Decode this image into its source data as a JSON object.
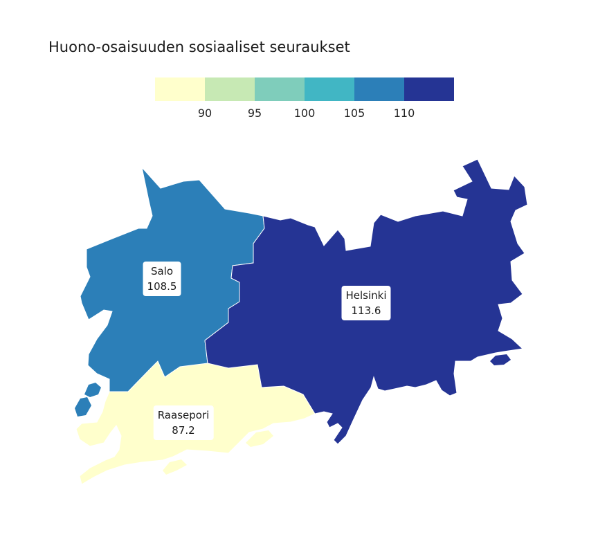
{
  "title": "Huono-osaisuuden sosiaaliset seuraukset",
  "legend": {
    "bins": [
      {
        "color": "#ffffcc"
      },
      {
        "color": "#c7e9b4"
      },
      {
        "color": "#7fcdbb"
      },
      {
        "color": "#41b6c4"
      },
      {
        "color": "#2c7fb8"
      },
      {
        "color": "#253494"
      }
    ],
    "ticks": [
      "90",
      "95",
      "100",
      "105",
      "110"
    ]
  },
  "regions": [
    {
      "name": "Salo",
      "value": "108.5",
      "color": "#2c7fb8"
    },
    {
      "name": "Helsinki",
      "value": "113.6",
      "color": "#253494"
    },
    {
      "name": "Raasepori",
      "value": "87.2",
      "color": "#ffffcc"
    }
  ]
}
